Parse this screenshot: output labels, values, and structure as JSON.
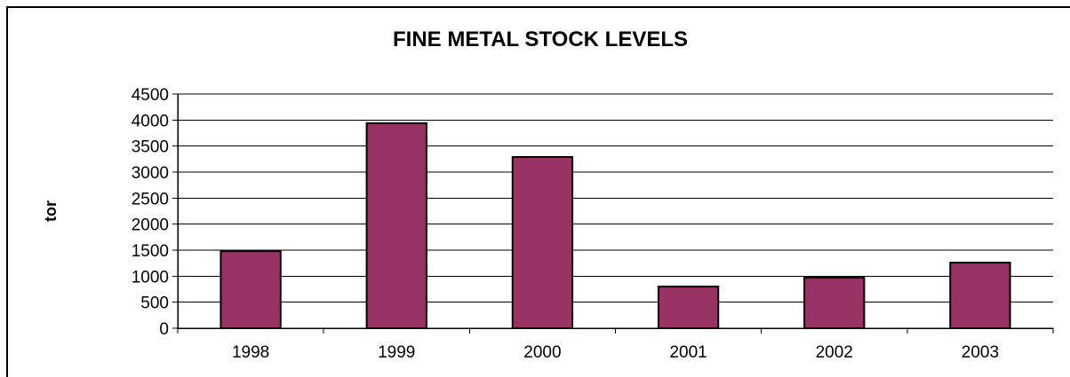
{
  "chart_data": {
    "type": "bar",
    "title": "FINE METAL STOCK LEVELS",
    "xlabel": "",
    "ylabel": "tor",
    "categories": [
      "1998",
      "1999",
      "2000",
      "2001",
      "2002",
      "2003"
    ],
    "values": [
      1480,
      3940,
      3290,
      800,
      970,
      1260
    ],
    "ylim": [
      0,
      4500
    ],
    "yticks": [
      "0",
      "500",
      "1000",
      "1500",
      "2000",
      "2500",
      "3000",
      "3500",
      "4000",
      "4500"
    ],
    "grid": true,
    "legend": "none",
    "colors": {
      "bar": "#993366",
      "bar_outline": "#000000",
      "gridline": "#000000"
    }
  }
}
